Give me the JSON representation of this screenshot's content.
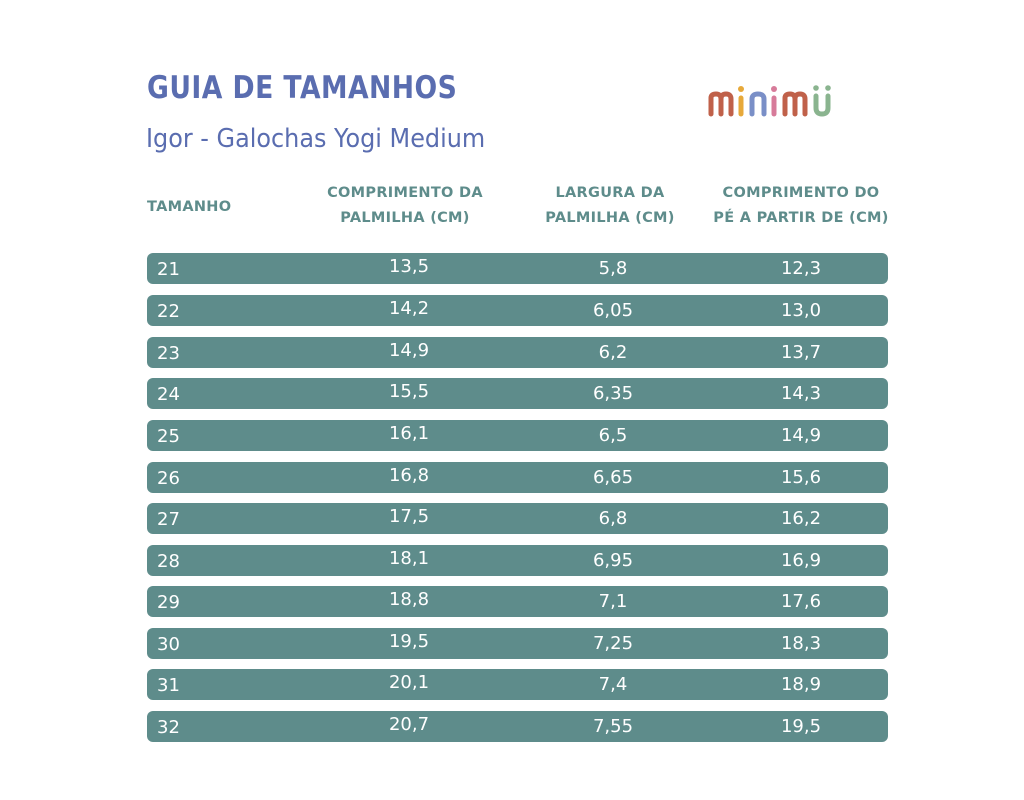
{
  "header": {
    "title": "GUIA DE TAMANHOS",
    "subtitle": "Igor - Galochas Yogi Medium",
    "logo_text": "minimü"
  },
  "table": {
    "columns": [
      {
        "line1": "TAMANHO",
        "line2": ""
      },
      {
        "line1": "COMPRIMENTO DA",
        "line2": "PALMILHA (CM)"
      },
      {
        "line1": "LARGURA DA",
        "line2": "PALMILHA (CM)"
      },
      {
        "line1": "COMPRIMENTO DO",
        "line2": "PÉ A PARTIR DE (CM)"
      }
    ],
    "rows": [
      {
        "size": "21",
        "insole_length": "13,5",
        "insole_width": "5,8",
        "foot_length": "12,3"
      },
      {
        "size": "22",
        "insole_length": "14,2",
        "insole_width": "6,05",
        "foot_length": "13,0"
      },
      {
        "size": "23",
        "insole_length": "14,9",
        "insole_width": "6,2",
        "foot_length": "13,7"
      },
      {
        "size": "24",
        "insole_length": "15,5",
        "insole_width": "6,35",
        "foot_length": "14,3"
      },
      {
        "size": "25",
        "insole_length": "16,1",
        "insole_width": "6,5",
        "foot_length": "14,9"
      },
      {
        "size": "26",
        "insole_length": "16,8",
        "insole_width": "6,65",
        "foot_length": "15,6"
      },
      {
        "size": "27",
        "insole_length": "17,5",
        "insole_width": "6,8",
        "foot_length": "16,2"
      },
      {
        "size": "28",
        "insole_length": "18,1",
        "insole_width": "6,95",
        "foot_length": "16,9"
      },
      {
        "size": "29",
        "insole_length": "18,8",
        "insole_width": "7,1",
        "foot_length": "17,6"
      },
      {
        "size": "30",
        "insole_length": "19,5",
        "insole_width": "7,25",
        "foot_length": "18,3"
      },
      {
        "size": "31",
        "insole_length": "20,1",
        "insole_width": "7,4",
        "foot_length": "18,9"
      },
      {
        "size": "32",
        "insole_length": "20,7",
        "insole_width": "7,55",
        "foot_length": "19,5"
      }
    ]
  },
  "colors": {
    "title": "#5a6db0",
    "header_text": "#5e8c8b",
    "row_bg": "#5e8c8b",
    "row_text": "#ffffff",
    "logo_m1": "#c0614a",
    "logo_i": "#e7a93a",
    "logo_n": "#7a8fc7",
    "logo_m2": "#c0614a",
    "logo_u": "#8ab48f"
  }
}
